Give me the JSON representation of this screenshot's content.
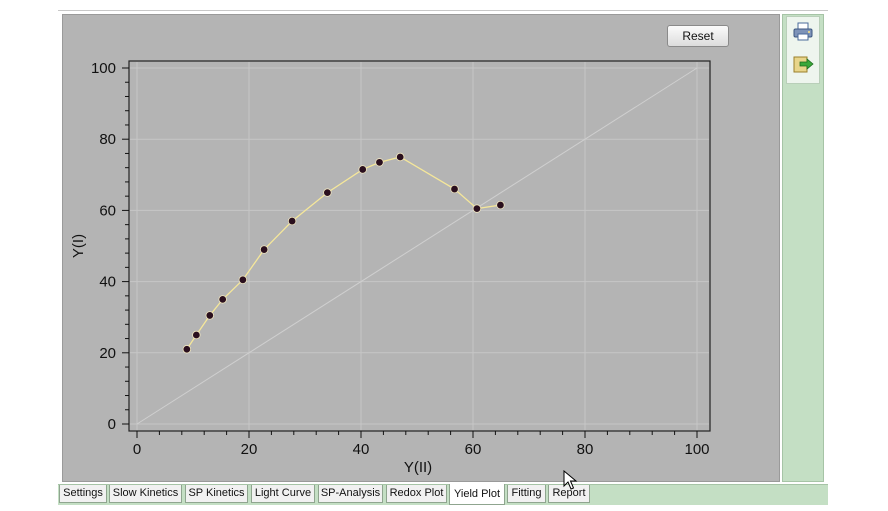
{
  "toolbar": {
    "reset_label": "Reset"
  },
  "side_tools": [
    {
      "icon": "printer-icon"
    },
    {
      "icon": "export-icon"
    }
  ],
  "tabs": [
    {
      "label": "Settings"
    },
    {
      "label": "Slow Kinetics"
    },
    {
      "label": "SP Kinetics"
    },
    {
      "label": "Light Curve"
    },
    {
      "label": "SP-Analysis"
    },
    {
      "label": "Redox Plot"
    },
    {
      "label": "Yield Plot",
      "active": true
    },
    {
      "label": "Fitting"
    },
    {
      "label": "Report"
    }
  ],
  "colors": {
    "panel_bg": "#b4b4b4",
    "line": "#f5e79a",
    "marker": "#2a0f1e",
    "diagonal": "#cfcfcf",
    "side_panel": "#c4dfc4"
  },
  "chart_data": {
    "type": "line",
    "xlabel": "Y(II)",
    "ylabel": "Y(I)",
    "xlim": [
      0,
      100
    ],
    "ylim": [
      0,
      100
    ],
    "xticks": [
      0,
      20,
      40,
      60,
      80,
      100
    ],
    "yticks": [
      0,
      20,
      40,
      60,
      80,
      100
    ],
    "grid": true,
    "reference_line": {
      "x": [
        0,
        100
      ],
      "y": [
        0,
        100
      ]
    },
    "series": [
      {
        "x": [
          8.9,
          10.6,
          13.0,
          15.3,
          18.9,
          22.7,
          27.7,
          34.0,
          40.3,
          43.3,
          47.0,
          56.7,
          60.7,
          64.9
        ],
        "y": [
          21,
          25,
          30.5,
          35,
          40.5,
          49,
          57,
          65,
          71.5,
          73.5,
          75,
          66,
          60.5,
          61.5
        ]
      }
    ]
  }
}
